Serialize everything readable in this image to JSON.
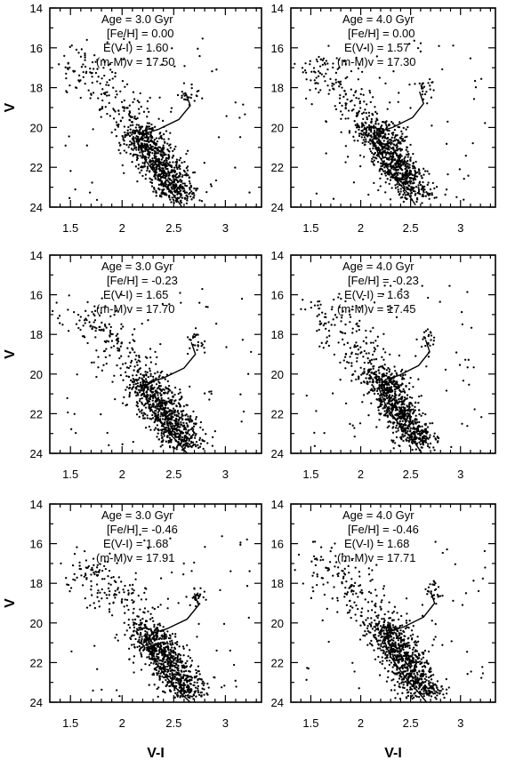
{
  "chart_data": [
    {
      "type": "scatter",
      "xlim": [
        1.3,
        3.35
      ],
      "ylim": [
        24,
        14
      ],
      "xticks": [
        "1.5",
        "2",
        "2.5",
        "3"
      ],
      "yticks": [
        "14",
        "16",
        "18",
        "20",
        "22",
        "24"
      ],
      "xlabel": "",
      "ylabel": "V",
      "annotations": [
        "Age = 3.0 Gyr",
        "[Fe/H] = 0.00",
        "E(V-I) = 1.60",
        "(m-M)v = 17.50"
      ],
      "params": {
        "age_gyr": 3.0,
        "feh": 0.0,
        "ebv": 1.6,
        "dm": 17.5
      },
      "seed": 11
    },
    {
      "type": "scatter",
      "xlim": [
        1.3,
        3.35
      ],
      "ylim": [
        24,
        14
      ],
      "xticks": [
        "1.5",
        "2",
        "2.5",
        "3"
      ],
      "yticks": [
        "14",
        "16",
        "18",
        "20",
        "22",
        "24"
      ],
      "xlabel": "",
      "ylabel": "",
      "annotations": [
        "Age = 4.0 Gyr",
        "[Fe/H] = 0.00",
        "E(V-I) = 1.57",
        "(m-M)v = 17.30"
      ],
      "params": {
        "age_gyr": 4.0,
        "feh": 0.0,
        "ebv": 1.57,
        "dm": 17.3
      },
      "seed": 23
    },
    {
      "type": "scatter",
      "xlim": [
        1.3,
        3.35
      ],
      "ylim": [
        24,
        14
      ],
      "xticks": [
        "1.5",
        "2",
        "2.5",
        "3"
      ],
      "yticks": [
        "14",
        "16",
        "18",
        "20",
        "22",
        "24"
      ],
      "xlabel": "",
      "ylabel": "V",
      "annotations": [
        "Age = 3.0 Gyr",
        "[Fe/H] = -0.23",
        "E(V-I) = 1.65",
        "(m-M)v = 17.70"
      ],
      "params": {
        "age_gyr": 3.0,
        "feh": -0.23,
        "ebv": 1.65,
        "dm": 17.7
      },
      "seed": 37
    },
    {
      "type": "scatter",
      "xlim": [
        1.3,
        3.35
      ],
      "ylim": [
        24,
        14
      ],
      "xticks": [
        "1.5",
        "2",
        "2.5",
        "3"
      ],
      "yticks": [
        "14",
        "16",
        "18",
        "20",
        "22",
        "24"
      ],
      "xlabel": "",
      "ylabel": "",
      "annotations": [
        "Age = 4.0 Gyr",
        "[Fe/H] = -0.23",
        "E(V-I) = 1.63",
        "(m-M)v = 17.45"
      ],
      "params": {
        "age_gyr": 4.0,
        "feh": -0.23,
        "ebv": 1.63,
        "dm": 17.45
      },
      "seed": 41
    },
    {
      "type": "scatter",
      "xlim": [
        1.3,
        3.35
      ],
      "ylim": [
        24,
        14
      ],
      "xticks": [
        "1.5",
        "2",
        "2.5",
        "3"
      ],
      "yticks": [
        "14",
        "16",
        "18",
        "20",
        "22",
        "24"
      ],
      "xlabel": "V-I",
      "ylabel": "V",
      "annotations": [
        "Age = 3.0 Gyr",
        "[Fe/H] = -0.46",
        "E(V-I) = 1.68",
        "(m-M)v = 17.91"
      ],
      "params": {
        "age_gyr": 3.0,
        "feh": -0.46,
        "ebv": 1.68,
        "dm": 17.91
      },
      "seed": 53
    },
    {
      "type": "scatter",
      "xlim": [
        1.3,
        3.35
      ],
      "ylim": [
        24,
        14
      ],
      "xticks": [
        "1.5",
        "2",
        "2.5",
        "3"
      ],
      "yticks": [
        "14",
        "16",
        "18",
        "20",
        "22",
        "24"
      ],
      "xlabel": "V-I",
      "ylabel": "",
      "annotations": [
        "Age = 4.0 Gyr",
        "[Fe/H] = -0.46",
        "E(V-I) = 1.68",
        "(m-M)v = 17.71"
      ],
      "params": {
        "age_gyr": 4.0,
        "feh": -0.46,
        "ebv": 1.68,
        "dm": 17.71
      },
      "seed": 67
    }
  ]
}
